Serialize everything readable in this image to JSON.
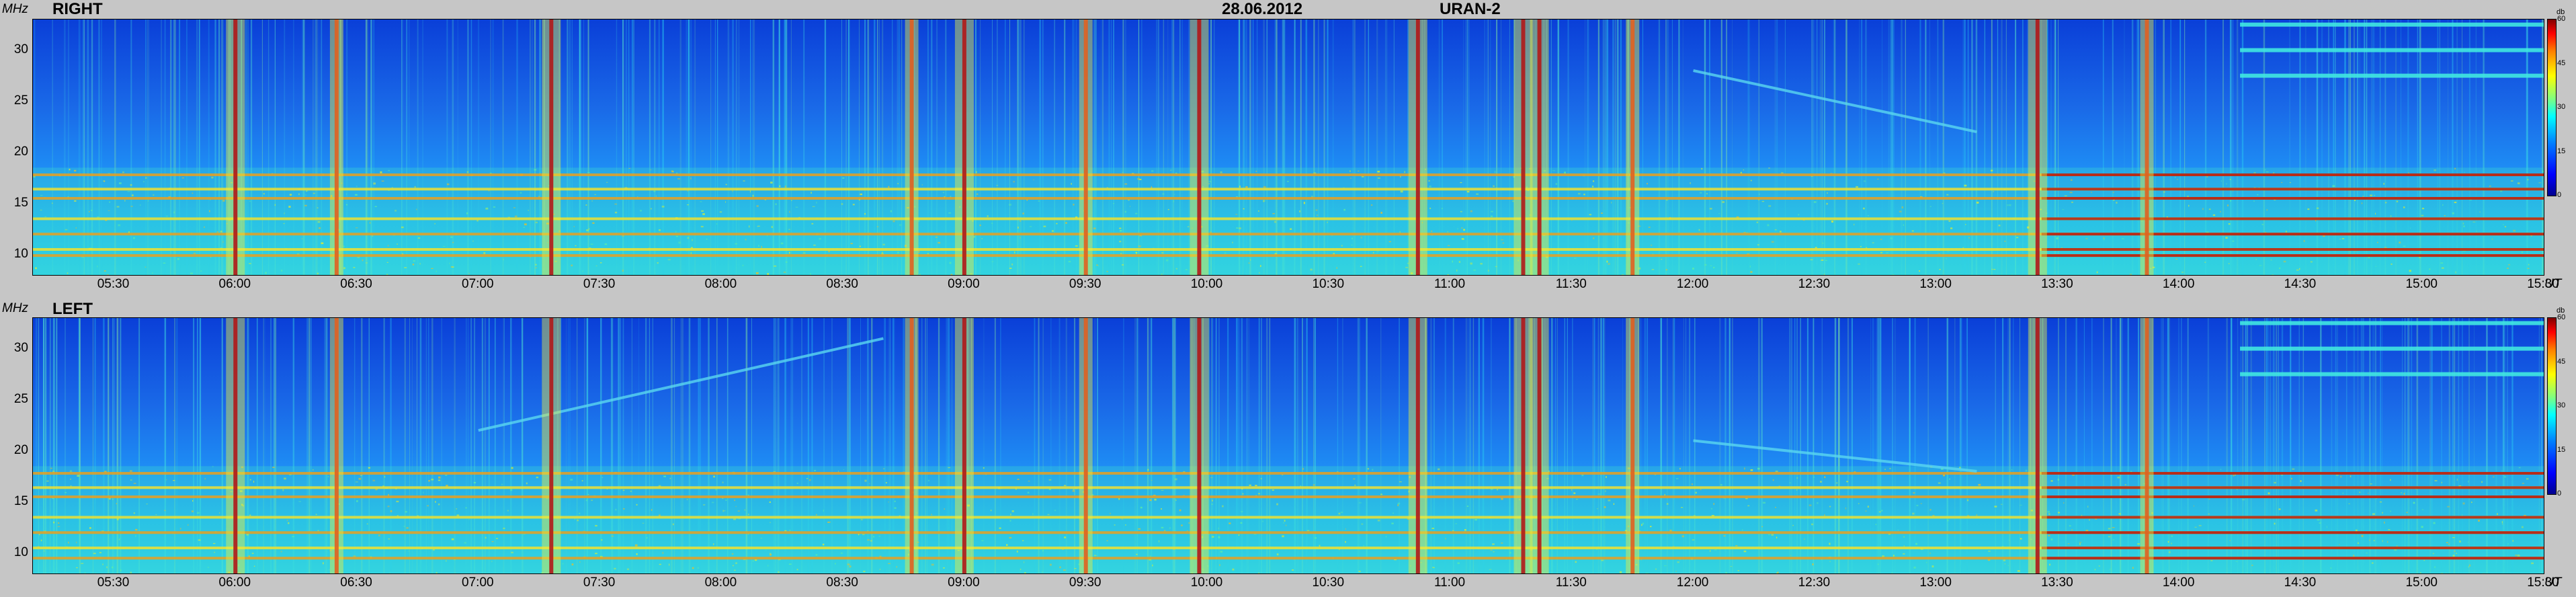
{
  "header": {
    "date": "28.06.2012",
    "instrument": "URAN-2"
  },
  "axes": {
    "y_unit": "MHz",
    "x_unit": "UT",
    "y_ticks": [
      "10",
      "15",
      "20",
      "25",
      "30"
    ],
    "x_ticks": [
      "05:30",
      "06:00",
      "06:30",
      "07:00",
      "07:30",
      "08:00",
      "08:30",
      "09:00",
      "09:30",
      "10:00",
      "10:30",
      "11:00",
      "11:30",
      "12:00",
      "12:30",
      "13:00",
      "13:30",
      "14:00",
      "14:30",
      "15:00",
      "15:30"
    ],
    "colorbar_unit": "db",
    "colorbar_ticks": [
      "0",
      "15",
      "30",
      "45",
      "60"
    ]
  },
  "panels": [
    {
      "label": "RIGHT"
    },
    {
      "label": "LEFT"
    }
  ],
  "chart_data": [
    {
      "type": "heatmap",
      "title": "RIGHT",
      "subtitle": "28.06.2012 URAN-2",
      "xlabel": "UT",
      "ylabel": "MHz",
      "x_range": [
        "05:10",
        "15:30"
      ],
      "ylim": [
        8,
        33
      ],
      "colorbar": {
        "label": "db",
        "range": [
          0,
          60
        ],
        "colormap": "jet"
      },
      "horizontal_bands_mhz": [
        9.9,
        10.5,
        12.0,
        13.5,
        15.5,
        16.4,
        17.8
      ],
      "bursts_ut": [
        {
          "t": "06:00",
          "level": "high"
        },
        {
          "t": "06:25",
          "level": "medium"
        },
        {
          "t": "07:18",
          "level": "high"
        },
        {
          "t": "08:47",
          "level": "medium"
        },
        {
          "t": "09:00",
          "level": "high"
        },
        {
          "t": "09:30",
          "level": "medium"
        },
        {
          "t": "09:58",
          "level": "high"
        },
        {
          "t": "10:52",
          "level": "high"
        },
        {
          "t": "11:18",
          "level": "high"
        },
        {
          "t": "11:22",
          "level": "high"
        },
        {
          "t": "11:45",
          "level": "medium"
        },
        {
          "t": "13:25",
          "level": "high"
        },
        {
          "t": "13:52",
          "level": "medium"
        }
      ],
      "narrowband_features": [
        {
          "start": "12:00",
          "end": "13:10",
          "f_start_mhz": 28,
          "f_end_mhz": 22,
          "note": "drifting band"
        },
        {
          "start": "14:15",
          "end": "15:30",
          "f_mhz": [
            27.5,
            30.0,
            32.5
          ],
          "note": "persistent lines"
        }
      ]
    },
    {
      "type": "heatmap",
      "title": "LEFT",
      "subtitle": "28.06.2012 URAN-2",
      "xlabel": "UT",
      "ylabel": "MHz",
      "x_range": [
        "05:10",
        "15:30"
      ],
      "ylim": [
        8,
        33
      ],
      "colorbar": {
        "label": "db",
        "range": [
          0,
          60
        ],
        "colormap": "jet"
      },
      "horizontal_bands_mhz": [
        9.5,
        10.5,
        12.0,
        13.5,
        15.5,
        16.4,
        17.8
      ],
      "bursts_ut": [
        {
          "t": "06:00",
          "level": "high"
        },
        {
          "t": "06:25",
          "level": "medium"
        },
        {
          "t": "07:18",
          "level": "high"
        },
        {
          "t": "08:47",
          "level": "medium"
        },
        {
          "t": "09:00",
          "level": "high"
        },
        {
          "t": "09:30",
          "level": "medium"
        },
        {
          "t": "09:58",
          "level": "high"
        },
        {
          "t": "10:52",
          "level": "high"
        },
        {
          "t": "11:18",
          "level": "high"
        },
        {
          "t": "11:22",
          "level": "high"
        },
        {
          "t": "11:45",
          "level": "medium"
        },
        {
          "t": "13:25",
          "level": "high"
        },
        {
          "t": "13:52",
          "level": "medium"
        }
      ],
      "narrowband_features": [
        {
          "start": "07:00",
          "end": "08:40",
          "f_start_mhz": 22,
          "f_end_mhz": 31,
          "note": "drifting band"
        },
        {
          "start": "12:00",
          "end": "13:10",
          "f_start_mhz": 21,
          "f_end_mhz": 18,
          "note": "drifting band"
        },
        {
          "start": "14:15",
          "end": "15:30",
          "f_mhz": [
            27.5,
            30.0,
            32.5
          ],
          "note": "persistent lines"
        }
      ]
    }
  ]
}
